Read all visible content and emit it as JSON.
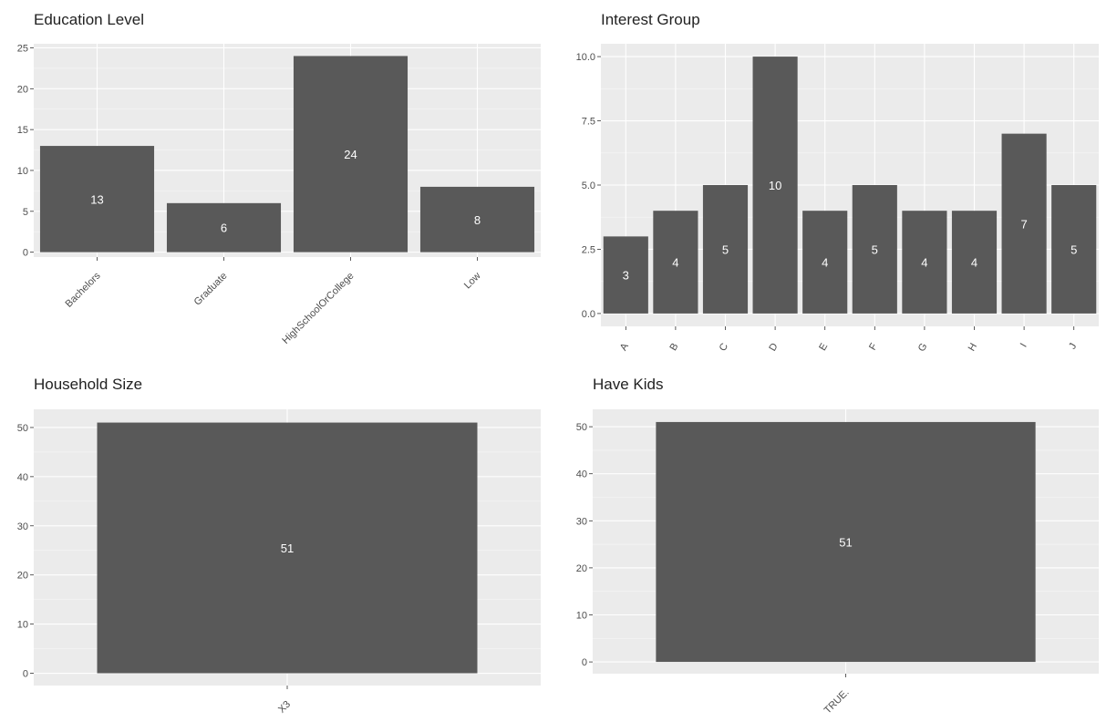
{
  "colors": {
    "panel_bg": "#ebebeb",
    "grid": "#ffffff",
    "bar": "#595959",
    "tick_text": "#4d4d4d",
    "tick_mark": "#333333",
    "bar_text": "#ffffff"
  },
  "chart_data": [
    {
      "type": "bar",
      "title": "Education Level",
      "categories": [
        "Bachelors",
        "Graduate",
        "HighSchoolOrCollege",
        "Low"
      ],
      "values": [
        13,
        6,
        24,
        8
      ],
      "bar_labels": [
        "13",
        "6",
        "24",
        "8"
      ],
      "yticks": [
        0,
        5,
        10,
        15,
        20,
        25
      ],
      "ytick_labels": [
        "0",
        "5",
        "10",
        "15",
        "20",
        "25"
      ],
      "ylim": [
        -0.6,
        25.5
      ],
      "xlabel_rotation": -45,
      "xlabel": "",
      "ylabel": "",
      "grid": true
    },
    {
      "type": "bar",
      "title": "Interest Group",
      "categories": [
        "A",
        "B",
        "C",
        "D",
        "E",
        "F",
        "G",
        "H",
        "I",
        "J"
      ],
      "values": [
        3,
        4,
        5,
        10,
        4,
        5,
        4,
        4,
        7,
        5
      ],
      "bar_labels": [
        "3",
        "4",
        "5",
        "10",
        "4",
        "5",
        "4",
        "4",
        "7",
        "5"
      ],
      "yticks": [
        0,
        2.5,
        5,
        7.5,
        10
      ],
      "ytick_labels": [
        "0.0",
        "2.5",
        "5.0",
        "7.5",
        "10.0"
      ],
      "ylim": [
        -0.5,
        10.5
      ],
      "xlabel_rotation": -60,
      "xlabel": "",
      "ylabel": "",
      "grid": true
    },
    {
      "type": "bar",
      "title": "Household Size",
      "categories": [
        "X3"
      ],
      "values": [
        51
      ],
      "bar_labels": [
        "51"
      ],
      "yticks": [
        0,
        10,
        20,
        30,
        40,
        50
      ],
      "ytick_labels": [
        "0",
        "10",
        "20",
        "30",
        "40",
        "50"
      ],
      "ylim": [
        -2.5,
        53.7
      ],
      "xlabel_rotation": -45,
      "xlabel": "",
      "ylabel": "",
      "grid": true
    },
    {
      "type": "bar",
      "title": "Have Kids",
      "categories": [
        "TRUE."
      ],
      "values": [
        51
      ],
      "bar_labels": [
        "51"
      ],
      "yticks": [
        0,
        10,
        20,
        30,
        40,
        50
      ],
      "ytick_labels": [
        "0",
        "10",
        "20",
        "30",
        "40",
        "50"
      ],
      "ylim": [
        -2.5,
        53.7
      ],
      "xlabel_rotation": -45,
      "xlabel": "",
      "ylabel": "",
      "grid": true
    }
  ]
}
